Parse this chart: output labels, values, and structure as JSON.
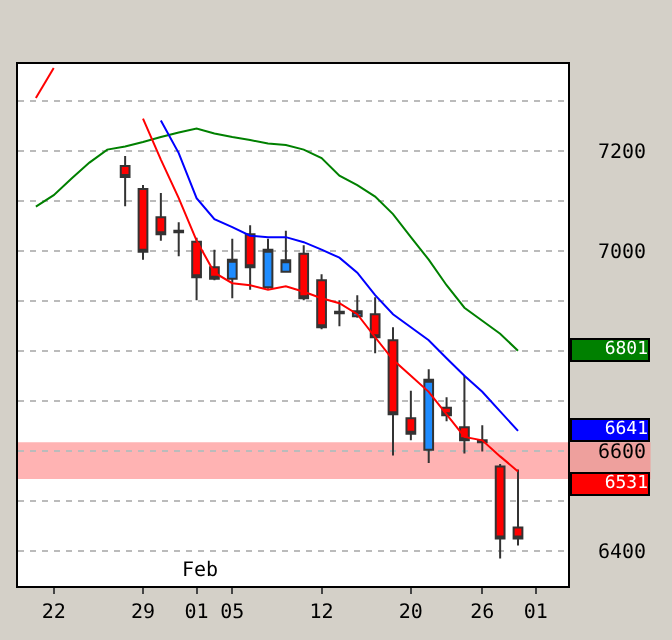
{
  "chart_data": {
    "type": "candlestick",
    "categories": [
      null,
      "22",
      null,
      null,
      null,
      null,
      "29",
      null,
      null,
      "01",
      null,
      "05",
      null,
      null,
      null,
      null,
      "12",
      null,
      null,
      null,
      null,
      "20",
      null,
      null,
      null,
      "26",
      null,
      null,
      "01"
    ],
    "ohlc": [
      null,
      null,
      null,
      null,
      null,
      [
        7170,
        7190,
        7090,
        7148
      ],
      [
        7124,
        7132,
        6983,
        6999
      ],
      [
        7068,
        7116,
        7021,
        7034
      ],
      [
        7041,
        7058,
        6990,
        7038
      ],
      [
        7019,
        7027,
        6902,
        6948
      ],
      [
        6968,
        7003,
        6942,
        6945
      ],
      [
        6945,
        7025,
        6906,
        6983
      ],
      [
        7034,
        7052,
        6923,
        6968
      ],
      [
        6928,
        7025,
        6925,
        7003
      ],
      [
        6959,
        7041,
        6957,
        6982
      ],
      [
        6995,
        7012,
        6902,
        6906
      ],
      [
        6942,
        6954,
        6844,
        6848
      ],
      [
        6879,
        6902,
        6850,
        6876
      ],
      [
        6870,
        6912,
        6867,
        6880
      ],
      [
        6874,
        6908,
        6796,
        6828
      ],
      [
        6822,
        6848,
        6592,
        6674
      ],
      [
        6666,
        6721,
        6622,
        6635
      ],
      [
        6603,
        6764,
        6577,
        6743
      ],
      [
        6687,
        6708,
        6660,
        6672
      ],
      [
        6648,
        6751,
        6596,
        6622
      ],
      [
        6622,
        6652,
        6600,
        6618
      ],
      [
        6570,
        6575,
        6386,
        6426
      ],
      [
        6448,
        6564,
        6412,
        6426
      ],
      null
    ],
    "series": [
      {
        "type": "line",
        "color": "#008000",
        "values": [
          7089,
          7112,
          7145,
          7177,
          7203,
          7209,
          7218,
          7228,
          7237,
          7245,
          7235,
          7228,
          7222,
          7215,
          7212,
          7203,
          7186,
          7151,
          7132,
          7109,
          7074,
          7028,
          6983,
          6932,
          6887,
          6861,
          6835,
          6801,
          null
        ]
      },
      {
        "type": "line",
        "color": "#0000ff",
        "values": [
          null,
          null,
          null,
          null,
          null,
          null,
          null,
          7261,
          7196,
          7106,
          7064,
          7048,
          7031,
          7028,
          7028,
          7018,
          7003,
          6987,
          6957,
          6912,
          6874,
          6848,
          6822,
          6786,
          6751,
          6719,
          6680,
          6641,
          null
        ]
      },
      {
        "type": "line",
        "color": "#ff0000",
        "values": [
          7306,
          7366,
          null,
          null,
          null,
          null,
          7265,
          7183,
          7106,
          7021,
          6957,
          6936,
          6932,
          6923,
          6930,
          6919,
          6906,
          6896,
          6874,
          6828,
          6783,
          6751,
          6719,
          6674,
          6629,
          6622,
          6590,
          6560,
          null
        ]
      }
    ],
    "ylim": [
      6331,
      7374
    ],
    "yticks": [
      6400,
      {
        "value": 6500,
        "label": null
      },
      6600,
      {
        "value": 6700,
        "label": null
      },
      {
        "value": 6800,
        "label": null
      },
      {
        "value": 6900,
        "label": null
      },
      7000,
      {
        "value": 7100,
        "label": null
      },
      7200,
      {
        "value": 7300,
        "label": null
      }
    ],
    "bands": [
      {
        "axis": "y",
        "from": 6545,
        "to": 6618,
        "color": "#ff8080"
      }
    ],
    "annotations": [
      "6801",
      "6641",
      "6531",
      "Feb"
    ],
    "grid": "y"
  }
}
